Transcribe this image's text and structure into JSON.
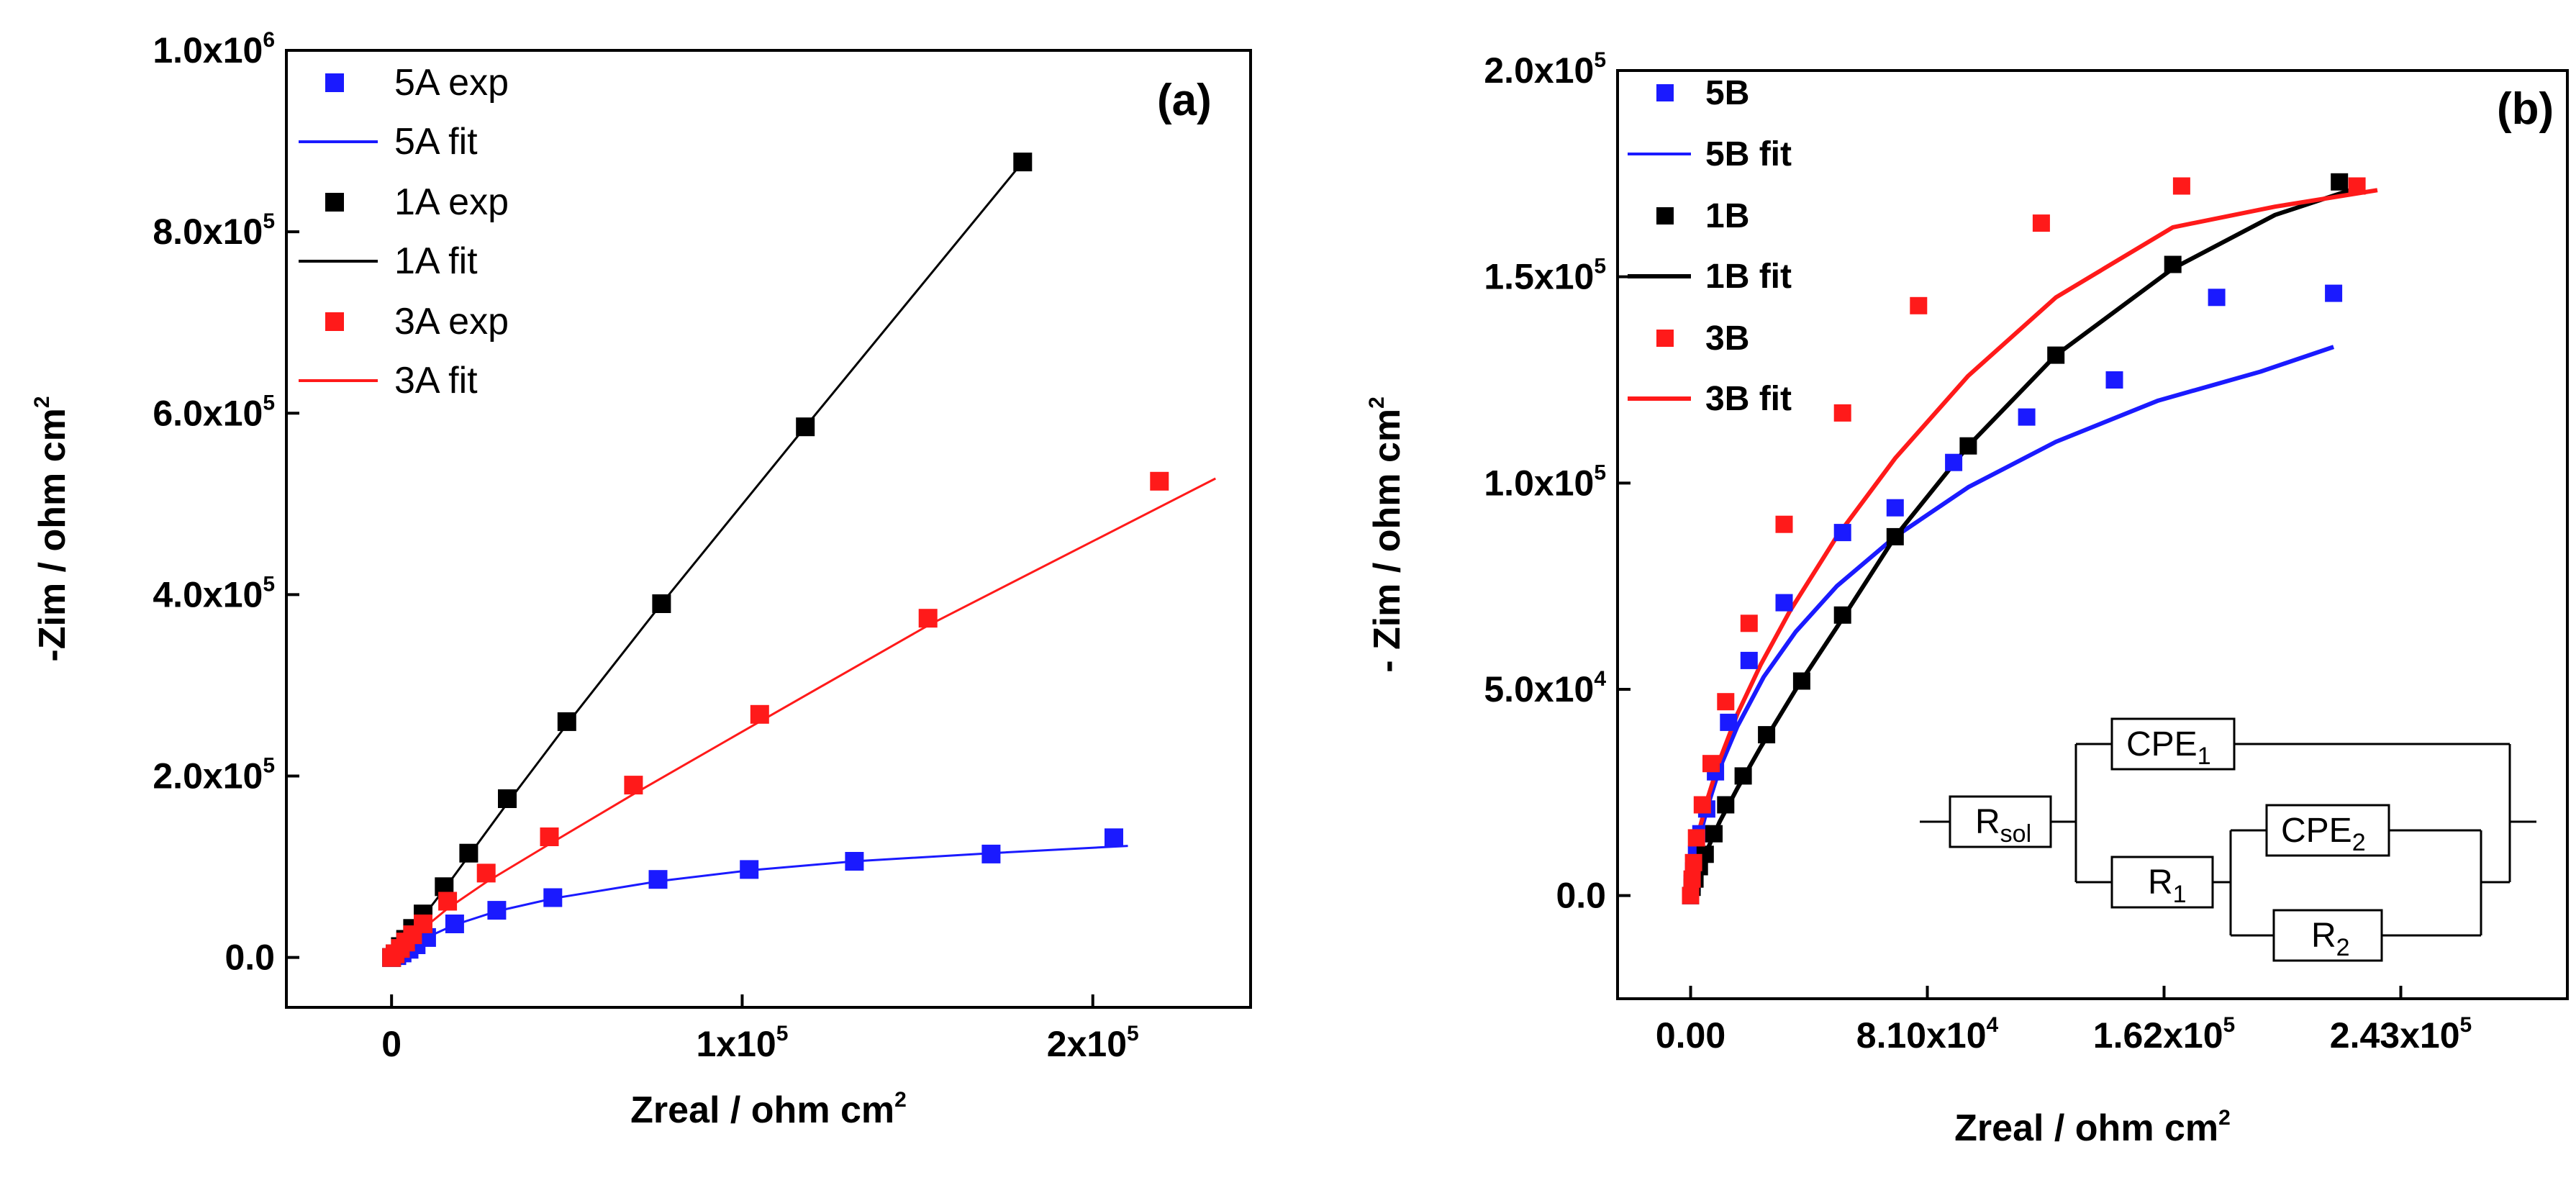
{
  "chart_data": [
    {
      "type": "scatter",
      "panel_label": "(a)",
      "xlabel": "Zreal / ohm cm",
      "xlabel_sup": "2",
      "ylabel": "-Zim / ohm cm",
      "ylabel_sup": "2",
      "xlim": [
        -30000,
        245000
      ],
      "ylim": [
        -55000,
        1000000
      ],
      "x_ticks": [
        {
          "value": 0,
          "base": "0",
          "exp": ""
        },
        {
          "value": 100000,
          "base": "1x10",
          "exp": "5"
        },
        {
          "value": 200000,
          "base": "2x10",
          "exp": "5"
        }
      ],
      "y_ticks": [
        {
          "value": 0,
          "base": "0.0",
          "exp": ""
        },
        {
          "value": 200000,
          "base": "2.0x10",
          "exp": "5"
        },
        {
          "value": 400000,
          "base": "4.0x10",
          "exp": "5"
        },
        {
          "value": 600000,
          "base": "6.0x10",
          "exp": "5"
        },
        {
          "value": 800000,
          "base": "8.0x10",
          "exp": "5"
        },
        {
          "value": 1000000,
          "base": "1.0x10",
          "exp": "6"
        }
      ],
      "legend_position": "top-left",
      "series": [
        {
          "name": "5A",
          "label_exp": "5A exp",
          "label_fit": "5A fit",
          "color": "#1a1aff",
          "exp": {
            "x": [
              0,
              1500,
              3000,
              5000,
              7000,
              10000,
              18000,
              30000,
              46000,
              76000,
              102000,
              132000,
              171000,
              206000
            ],
            "y": [
              0,
              2000,
              5000,
              9000,
              14000,
              22000,
              37000,
              52000,
              66000,
              86000,
              97000,
              106000,
              114000,
              132000
            ]
          },
          "fit": {
            "x": [
              0,
              2000,
              5000,
              10000,
              18000,
              30000,
              46000,
              76000,
              102000,
              132000,
              171000,
              210000
            ],
            "y": [
              0,
              4000,
              11000,
              22000,
              36000,
              51000,
              65000,
              84000,
              96000,
              106000,
              115000,
              123000
            ]
          }
        },
        {
          "name": "1A",
          "label_exp": "1A exp",
          "label_fit": "1A fit",
          "color": "#000000",
          "exp": {
            "x": [
              0,
              1000,
              2500,
              4000,
              6000,
              9000,
              15000,
              22000,
              33000,
              50000,
              77000,
              118000,
              180000
            ],
            "y": [
              0,
              4000,
              12000,
              20000,
              32000,
              48000,
              78000,
              115000,
              175000,
              260000,
              390000,
              585000,
              877000
            ]
          },
          "fit": {
            "x": [
              0,
              5000,
              15000,
              33000,
              50000,
              77000,
              118000,
              180000
            ],
            "y": [
              0,
              25000,
              75000,
              170000,
              257000,
              390000,
              585000,
              877000
            ]
          }
        },
        {
          "name": "3A",
          "label_exp": "3A exp",
          "label_fit": "3A fit",
          "color": "#ff1a1a",
          "exp": {
            "x": [
              0,
              1000,
              2500,
              4000,
              6000,
              9000,
              16000,
              27000,
              45000,
              69000,
              105000,
              153000,
              219000
            ],
            "y": [
              0,
              4000,
              10000,
              17000,
              25000,
              37000,
              62000,
              93000,
              133000,
              190000,
              268000,
              374000,
              525000
            ]
          },
          "fit": {
            "x": [
              0,
              5000,
              16000,
              27000,
              45000,
              69000,
              105000,
              153000,
              235000
            ],
            "y": [
              0,
              19000,
              54000,
              83000,
              125000,
              180000,
              260000,
              366000,
              528000
            ]
          }
        }
      ]
    },
    {
      "type": "scatter",
      "panel_label": "(b)",
      "xlabel": "Zreal / ohm cm",
      "xlabel_sup": "2",
      "ylabel": "- Zim / ohm cm",
      "ylabel_sup": "2",
      "xlim": [
        -25000,
        300000
      ],
      "ylim": [
        -25000,
        200000
      ],
      "x_ticks": [
        {
          "value": 0,
          "base": "0.00",
          "exp": ""
        },
        {
          "value": 81000,
          "base": "8.10x10",
          "exp": "4"
        },
        {
          "value": 162000,
          "base": "1.62x10",
          "exp": "5"
        },
        {
          "value": 243000,
          "base": "2.43x10",
          "exp": "5"
        }
      ],
      "y_ticks": [
        {
          "value": 0,
          "base": "0.0",
          "exp": ""
        },
        {
          "value": 50000,
          "base": "5.0x10",
          "exp": "4"
        },
        {
          "value": 100000,
          "base": "1.0x10",
          "exp": "5"
        },
        {
          "value": 150000,
          "base": "1.5x10",
          "exp": "5"
        },
        {
          "value": 200000,
          "base": "2.0x10",
          "exp": "5"
        }
      ],
      "legend_position": "top-left",
      "series": [
        {
          "name": "5B",
          "label_exp": "5B",
          "label_fit": "5B fit",
          "color": "#1a1aff",
          "exp": {
            "x": [
              0,
              500,
              1000,
              2000,
              3500,
              5500,
              8500,
              13000,
              20000,
              32000,
              52000,
              70000,
              90000,
              115000,
              145000,
              180000,
              220000
            ],
            "y": [
              0,
              3000,
              6000,
              10000,
              15000,
              21000,
              30000,
              42000,
              57000,
              71000,
              88000,
              94000,
              105000,
              116000,
              125000,
              145000,
              146000
            ]
          },
          "fit": {
            "x": [
              0,
              1000,
              3000,
              6000,
              10000,
              16000,
              25000,
              36000,
              50000,
              70000,
              95000,
              125000,
              160000,
              195000,
              220000
            ],
            "y": [
              0,
              6000,
              14000,
              22000,
              31000,
              41000,
              53000,
              64000,
              75000,
              87000,
              99000,
              110000,
              120000,
              127000,
              133000
            ]
          }
        },
        {
          "name": "1B",
          "label_exp": "1B",
          "label_fit": "1B fit",
          "color": "#000000",
          "exp": {
            "x": [
              0,
              500,
              1500,
              3000,
              5000,
              8000,
              12000,
              18000,
              26000,
              38000,
              52000,
              70000,
              95000,
              125000,
              165000,
              222000
            ],
            "y": [
              0,
              2000,
              4000,
              7000,
              10000,
              15000,
              22000,
              29000,
              39000,
              52000,
              68000,
              87000,
              109000,
              131000,
              153000,
              173000
            ]
          },
          "fit": {
            "x": [
              0,
              2000,
              5000,
              10000,
              16000,
              24000,
              36000,
              50000,
              70000,
              95000,
              125000,
              165000,
              200000,
              230000
            ],
            "y": [
              0,
              5000,
              10000,
              18000,
              26000,
              36000,
              50000,
              65000,
              87000,
              109000,
              131000,
              152000,
              165000,
              172000
            ]
          }
        },
        {
          "name": "3B",
          "label_exp": "3B",
          "label_fit": "3B fit",
          "color": "#ff1a1a",
          "exp": {
            "x": [
              0,
              500,
              1000,
              2000,
              4000,
              7000,
              12000,
              20000,
              32000,
              52000,
              78000,
              120000,
              168000,
              228000
            ],
            "y": [
              0,
              4000,
              8000,
              14000,
              22000,
              32000,
              47000,
              66000,
              90000,
              117000,
              143000,
              163000,
              172000,
              172000
            ]
          },
          "fit": {
            "x": [
              0,
              1000,
              3000,
              6000,
              10000,
              16000,
              24000,
              34000,
              50000,
              70000,
              95000,
              125000,
              165000,
              200000,
              235000
            ],
            "y": [
              0,
              8000,
              16000,
              24000,
              33000,
              44000,
              56000,
              69000,
              87000,
              106000,
              126000,
              145000,
              162000,
              167000,
              171000
            ]
          }
        }
      ],
      "circuit": {
        "r_sol": "R",
        "r_sol_sub": "sol",
        "cpe1": "CPE",
        "cpe1_sub": "1",
        "r1": "R",
        "r1_sub": "1",
        "cpe2": "CPE",
        "cpe2_sub": "2",
        "r2": "R",
        "r2_sub": "2"
      }
    }
  ]
}
